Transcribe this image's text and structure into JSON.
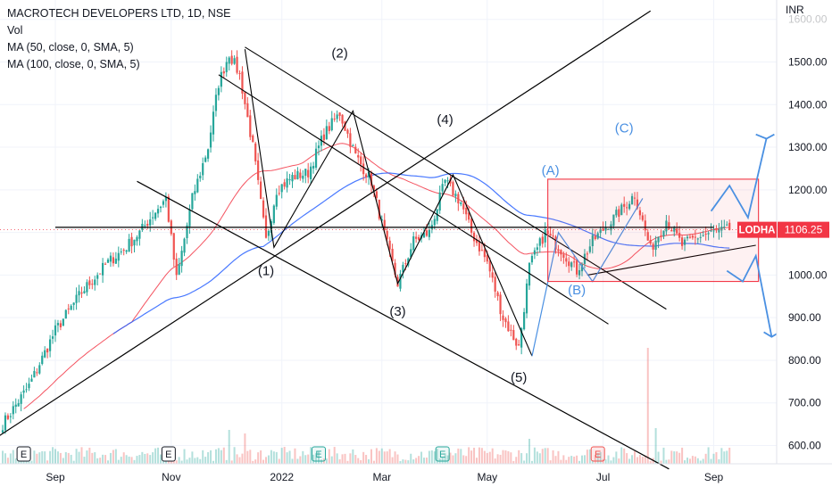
{
  "legend": {
    "title": "MACROTECH DEVELOPERS LTD, 1D, NSE",
    "vol": "Vol",
    "ma50": "MA (50, close, 0, SMA, 5)",
    "ma100": "MA (100, close, 0, SMA, 5)"
  },
  "chart_data": {
    "type": "candlestick",
    "symbol": "LODHA",
    "last_price": "1106.25",
    "currency_label": "INR",
    "y_ticks": [
      {
        "label": "1600.00",
        "value": 1600
      },
      {
        "label": "1500.00",
        "value": 1500
      },
      {
        "label": "1400.00",
        "value": 1400
      },
      {
        "label": "1300.00",
        "value": 1300
      },
      {
        "label": "1200.00",
        "value": 1200
      },
      {
        "label": "1100.00",
        "value": 1100
      },
      {
        "label": "1000.00",
        "value": 1000
      },
      {
        "label": "900.00",
        "value": 900
      },
      {
        "label": "800.00",
        "value": 800
      },
      {
        "label": "700.00",
        "value": 700
      },
      {
        "label": "600.00",
        "value": 600
      }
    ],
    "x_ticks": [
      {
        "label": "Sep",
        "bar": 20
      },
      {
        "label": "Nov",
        "bar": 64
      },
      {
        "label": "2022",
        "bar": 106
      },
      {
        "label": "Mar",
        "bar": 144
      },
      {
        "label": "May",
        "bar": 184
      },
      {
        "label": "Jul",
        "bar": 228
      },
      {
        "label": "Sep",
        "bar": 270
      }
    ],
    "anchors": [
      {
        "bar": 0,
        "price": 650
      },
      {
        "bar": 10,
        "price": 740
      },
      {
        "bar": 20,
        "price": 870
      },
      {
        "bar": 30,
        "price": 960
      },
      {
        "bar": 40,
        "price": 1030
      },
      {
        "bar": 46,
        "price": 1060
      },
      {
        "bar": 52,
        "price": 1100
      },
      {
        "bar": 58,
        "price": 1150
      },
      {
        "bar": 62,
        "price": 1180
      },
      {
        "bar": 66,
        "price": 990
      },
      {
        "bar": 72,
        "price": 1180
      },
      {
        "bar": 78,
        "price": 1300
      },
      {
        "bar": 82,
        "price": 1450
      },
      {
        "bar": 86,
        "price": 1520
      },
      {
        "bar": 90,
        "price": 1470
      },
      {
        "bar": 95,
        "price": 1300
      },
      {
        "bar": 100,
        "price": 1080
      },
      {
        "bar": 104,
        "price": 1200
      },
      {
        "bar": 110,
        "price": 1230
      },
      {
        "bar": 116,
        "price": 1240
      },
      {
        "bar": 122,
        "price": 1330
      },
      {
        "bar": 128,
        "price": 1380
      },
      {
        "bar": 134,
        "price": 1280
      },
      {
        "bar": 140,
        "price": 1220
      },
      {
        "bar": 146,
        "price": 1070
      },
      {
        "bar": 150,
        "price": 980
      },
      {
        "bar": 156,
        "price": 1080
      },
      {
        "bar": 162,
        "price": 1100
      },
      {
        "bar": 168,
        "price": 1220
      },
      {
        "bar": 174,
        "price": 1170
      },
      {
        "bar": 178,
        "price": 1100
      },
      {
        "bar": 184,
        "price": 1030
      },
      {
        "bar": 190,
        "price": 900
      },
      {
        "bar": 196,
        "price": 830
      },
      {
        "bar": 200,
        "price": 1020
      },
      {
        "bar": 206,
        "price": 1100
      },
      {
        "bar": 212,
        "price": 1060
      },
      {
        "bar": 218,
        "price": 1010
      },
      {
        "bar": 224,
        "price": 1080
      },
      {
        "bar": 230,
        "price": 1120
      },
      {
        "bar": 236,
        "price": 1160
      },
      {
        "bar": 240,
        "price": 1190
      },
      {
        "bar": 246,
        "price": 1060
      },
      {
        "bar": 252,
        "price": 1130
      },
      {
        "bar": 258,
        "price": 1070
      },
      {
        "bar": 264,
        "price": 1090
      },
      {
        "bar": 270,
        "price": 1100
      },
      {
        "bar": 276,
        "price": 1106
      }
    ],
    "earnings_markers": [
      {
        "label": "E",
        "bar": 8,
        "kind": "neutral"
      },
      {
        "label": "E",
        "bar": 63,
        "kind": "neutral"
      },
      {
        "label": "E",
        "bar": 120,
        "kind": "positive"
      },
      {
        "label": "E",
        "bar": 167,
        "kind": "positive"
      },
      {
        "label": "E",
        "bar": 226,
        "kind": "negative"
      }
    ],
    "wave_labels": [
      {
        "text": "(1)",
        "bar": 100,
        "price": 1000
      },
      {
        "text": "(2)",
        "bar": 128,
        "price": 1510
      },
      {
        "text": "(3)",
        "bar": 150,
        "price": 905
      },
      {
        "text": "(4)",
        "bar": 168,
        "price": 1355
      },
      {
        "text": "(5)",
        "bar": 196,
        "price": 750
      },
      {
        "text": "(A)",
        "bar": 208,
        "price": 1235
      },
      {
        "text": "(B)",
        "bar": 218,
        "price": 955
      },
      {
        "text": "(C)",
        "bar": 236,
        "price": 1335
      }
    ]
  },
  "colors": {
    "up": "#26a69a",
    "down": "#ef5350",
    "ma50": "#f23645",
    "ma100": "#2962ff",
    "trendline": "#000000",
    "wave_blue": "#4a90e2",
    "box": "#f23645",
    "price_tag": "#f23645"
  }
}
